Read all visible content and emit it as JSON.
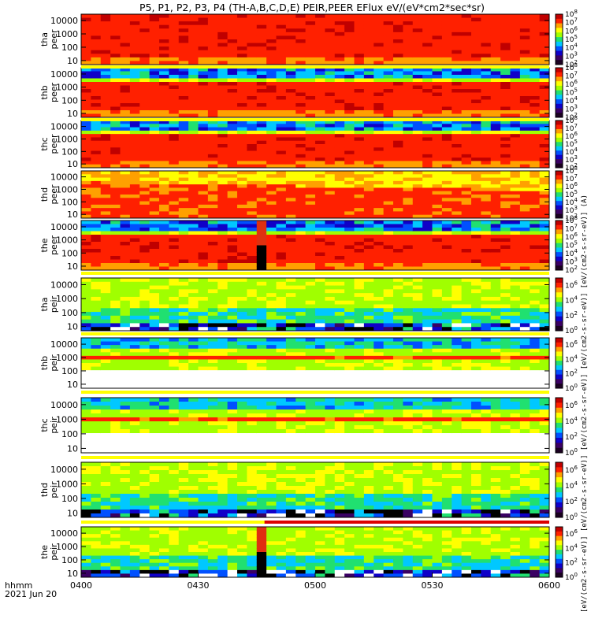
{
  "page_title": "P5, P1, P2, P3, P4 (TH-A,B,C,D,E) PEIR,PEER EFlux eV/(eV*cm2*sec*sr)",
  "corner_labels": {
    "format": "hhmm",
    "date": "2021 Jun 20"
  },
  "colorbar_units": "[eV/(cm2-s-sr-eV)] [eV/(cm2-s-sr-eV)] [eV/(cm2-s-sr-eV)] [eV/(cm2-s-sr-eV)] [eV/(cm2-s-sr-eV)] (A)",
  "colors": {
    "colormap": [
      "#1a0020",
      "#3a0063",
      "#1000c8",
      "#0050ff",
      "#00c8ff",
      "#20e070",
      "#a0ff00",
      "#ffff00",
      "#ffa000",
      "#ff2000",
      "#c00000"
    ],
    "quality_bar_ok": "#ffff00",
    "quality_bar_bad": "#dd0000",
    "missing_data": "#000000"
  },
  "chart_data": {
    "type": "heatmap",
    "title": "P5, P1, P2, P3, P4 (TH-A,B,C,D,E) PEIR,PEER EFlux eV/(eV*cm2*sec*sr)",
    "x_axis": {
      "label": "hhmm",
      "range": [
        "0400",
        "0600"
      ],
      "ticks": [
        "0400",
        "0430",
        "0500",
        "0530",
        "0600"
      ]
    },
    "y_axis": {
      "scale": "log",
      "range": [
        5,
        30000
      ],
      "ticks": [
        "10",
        "100",
        "1000",
        "10000"
      ]
    },
    "panels": [
      {
        "name": "tha peer",
        "species": "electron",
        "probe": "tha",
        "cb_ticks": [
          "10^2",
          "10^3",
          "10^4",
          "10^5",
          "10^6",
          "10^7",
          "10^8"
        ],
        "cb_range": [
          2,
          8
        ],
        "has_quality_bar": false,
        "gap": null
      },
      {
        "name": "thb peer",
        "species": "electron",
        "probe": "thb",
        "cb_ticks": [
          "10^2",
          "10^3",
          "10^4",
          "10^5",
          "10^6",
          "10^7",
          "10^8"
        ],
        "cb_range": [
          2,
          8
        ],
        "has_quality_bar": true,
        "gap": null
      },
      {
        "name": "thc peer",
        "species": "electron",
        "probe": "thc",
        "cb_ticks": [
          "10^2",
          "10^3",
          "10^4",
          "10^5",
          "10^6",
          "10^7",
          "10^8"
        ],
        "cb_range": [
          2,
          8
        ],
        "has_quality_bar": true,
        "gap": null
      },
      {
        "name": "thd peer",
        "species": "electron",
        "probe": "thd",
        "cb_ticks": [
          "10^2",
          "10^3",
          "10^4",
          "10^5",
          "10^6",
          "10^7",
          "10^8"
        ],
        "cb_range": [
          2,
          8
        ],
        "has_quality_bar": false,
        "gap": null
      },
      {
        "name": "the peer",
        "species": "electron",
        "probe": "the",
        "cb_ticks": [
          "10^2",
          "10^3",
          "10^4",
          "10^5",
          "10^6",
          "10^7",
          "10^8"
        ],
        "cb_range": [
          2,
          8
        ],
        "has_quality_bar": false,
        "gap": [
          "0445",
          "0447"
        ]
      },
      {
        "name": "tha peir",
        "species": "ion",
        "probe": "tha",
        "cb_ticks": [
          "10^0",
          "10^2",
          "10^4",
          "10^6"
        ],
        "cb_range": [
          0,
          7
        ],
        "has_quality_bar": true,
        "gap": null
      },
      {
        "name": "thb peir",
        "species": "ion",
        "probe": "thb",
        "cb_ticks": [
          "10^0",
          "10^2",
          "10^4",
          "10^6"
        ],
        "cb_range": [
          0,
          7
        ],
        "has_quality_bar": true,
        "gap": null
      },
      {
        "name": "thc peir",
        "species": "ion",
        "probe": "thc",
        "cb_ticks": [
          "10^0",
          "10^2",
          "10^4",
          "10^6"
        ],
        "cb_range": [
          0,
          7
        ],
        "has_quality_bar": true,
        "gap": null
      },
      {
        "name": "thd peir",
        "species": "ion",
        "probe": "thd",
        "cb_ticks": [
          "10^0",
          "10^2",
          "10^4",
          "10^6"
        ],
        "cb_range": [
          0,
          7
        ],
        "has_quality_bar": true,
        "gap": null
      },
      {
        "name": "the peir",
        "species": "ion",
        "probe": "the",
        "cb_ticks": [
          "10^0",
          "10^2",
          "10^4",
          "10^6"
        ],
        "cb_range": [
          0,
          7
        ],
        "has_quality_bar": true,
        "gap": [
          "0445",
          "0447"
        ],
        "quality_bar_bad_from": "0447"
      }
    ]
  }
}
